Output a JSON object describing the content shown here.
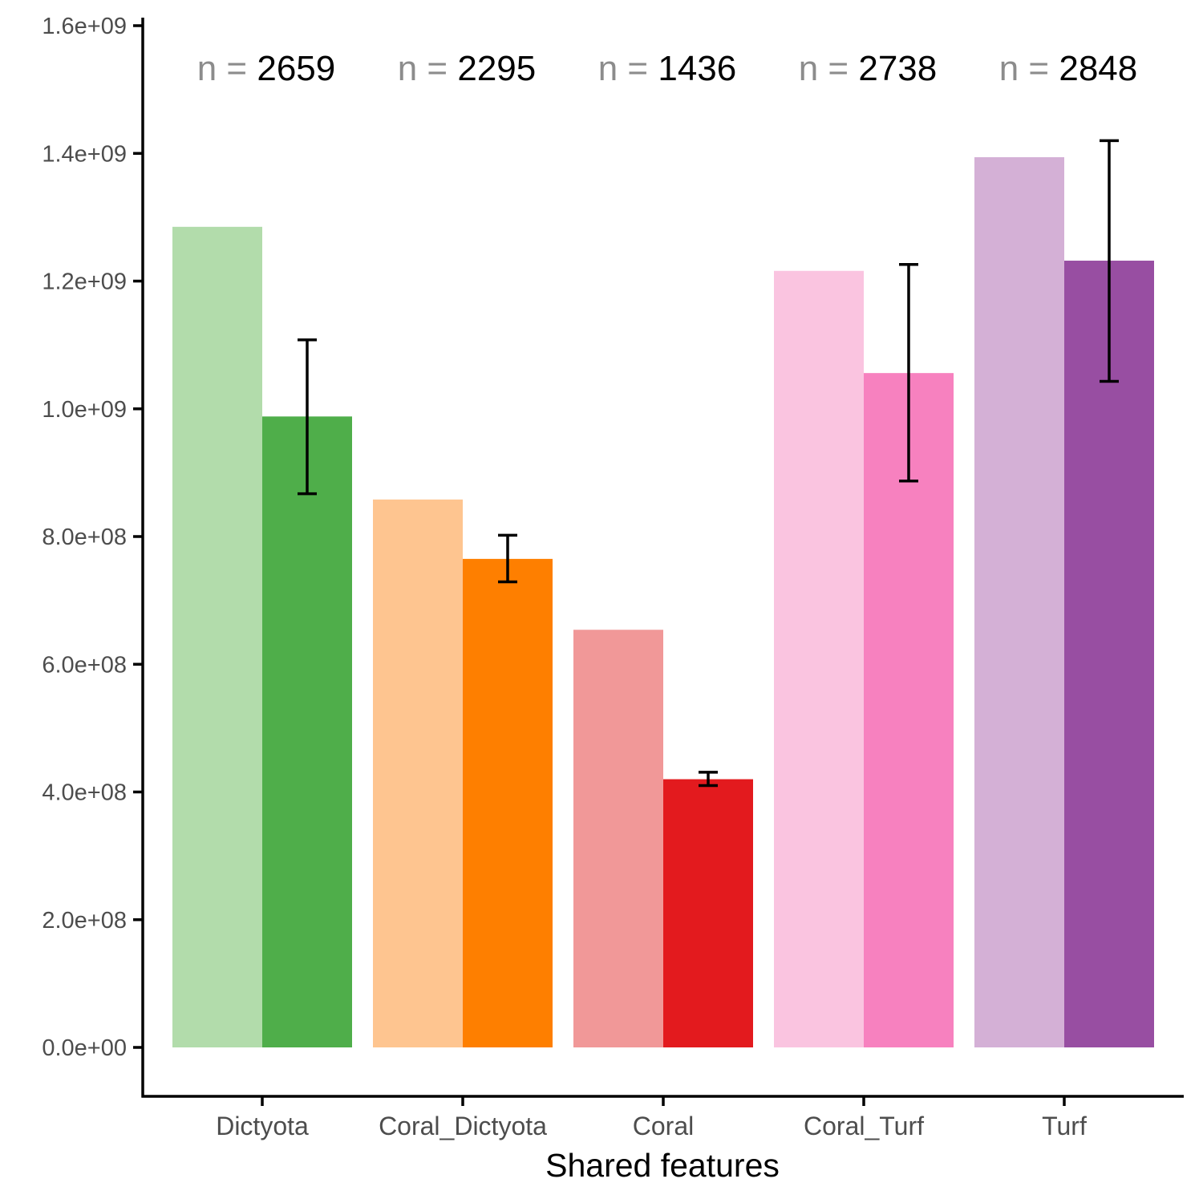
{
  "chart_data": {
    "type": "bar",
    "title": "",
    "xlabel": "Shared features",
    "ylabel": "",
    "ylim": [
      -150000000,
      1600000000
    ],
    "yticks": [
      "0.0e+00",
      "2.0e+08",
      "4.0e+08",
      "6.0e+08",
      "8.0e+08",
      "1.0e+09",
      "1.2e+09",
      "1.4e+09",
      "1.6e+09"
    ],
    "ytick_values": [
      0,
      200000000,
      400000000,
      600000000,
      800000000,
      1000000000,
      1200000000,
      1400000000,
      1600000000
    ],
    "grid": false,
    "legend": "none",
    "categories": [
      "Dictyota",
      "Coral_Dictyota",
      "Coral",
      "Coral_Turf",
      "Turf"
    ],
    "groups": [
      {
        "category": "Dictyota",
        "n_prefix": "n = ",
        "n_value": "2659",
        "light_value": 1285000000,
        "dark_value": 988000000,
        "error_low": 867000000,
        "error_high": 1108000000,
        "light_color": "#b2dcab",
        "dark_color": "#4fae4a"
      },
      {
        "category": "Coral_Dictyota",
        "n_prefix": "n = ",
        "n_value": "2295",
        "light_value": 858000000,
        "dark_value": 765000000,
        "error_low": 729000000,
        "error_high": 802000000,
        "light_color": "#fec590",
        "dark_color": "#fe7f00"
      },
      {
        "category": "Coral",
        "n_prefix": "n = ",
        "n_value": "1436",
        "light_value": 654000000,
        "dark_value": 420000000,
        "error_low": 410000000,
        "error_high": 431000000,
        "light_color": "#f19898",
        "dark_color": "#e31a1e"
      },
      {
        "category": "Coral_Turf",
        "n_prefix": "n = ",
        "n_value": "2738",
        "light_value": 1216000000,
        "dark_value": 1056000000,
        "error_low": 887000000,
        "error_high": 1226000000,
        "light_color": "#fac4e0",
        "dark_color": "#f781bf"
      },
      {
        "category": "Turf",
        "n_prefix": "n = ",
        "n_value": "2848",
        "light_value": 1394000000,
        "dark_value": 1232000000,
        "error_low": 1043000000,
        "error_high": 1420000000,
        "light_color": "#d4b0d6",
        "dark_color": "#984ea2"
      }
    ]
  }
}
